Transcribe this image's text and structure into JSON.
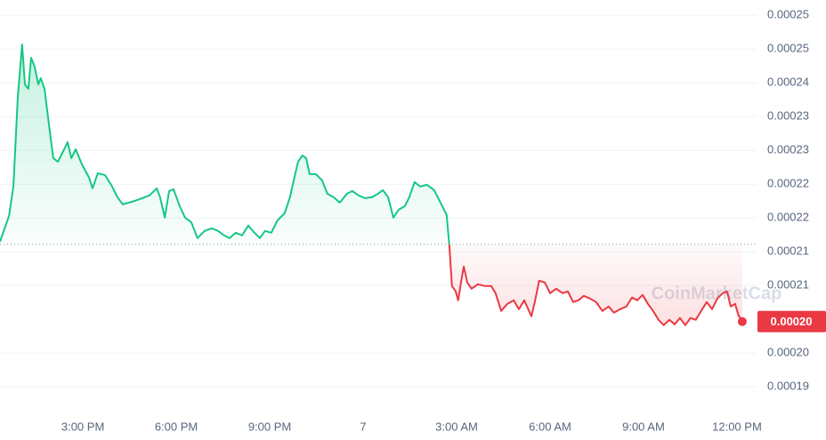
{
  "chart_data": {
    "type": "line",
    "watermark": "CoinMarketCap",
    "up_color": "#16c784",
    "down_color": "#ea3943",
    "baseline": 0.0002137,
    "last_price_label": "0.00020",
    "grid": true,
    "xlim": [
      12.34,
      36.63
    ],
    "xticks": [
      {
        "value": 15,
        "label": "3:00 PM"
      },
      {
        "value": 18,
        "label": "6:00 PM"
      },
      {
        "value": 21,
        "label": "9:00 PM"
      },
      {
        "value": 24,
        "label": "7"
      },
      {
        "value": 27,
        "label": "3:00 AM"
      },
      {
        "value": 30,
        "label": "6:00 AM"
      },
      {
        "value": 33,
        "label": "9:00 AM"
      },
      {
        "value": 36,
        "label": "12:00 PM"
      }
    ],
    "ylim": [
      0.0001869,
      0.0002535
    ],
    "yticks": [
      {
        "value": 0.0001905,
        "label": "0.00019"
      },
      {
        "value": 0.000196,
        "label": "0.00020"
      },
      {
        "value": 0.000207,
        "label": "0.00021"
      },
      {
        "value": 0.0002125,
        "label": "0.00021"
      },
      {
        "value": 0.000218,
        "label": "0.00022"
      },
      {
        "value": 0.0002235,
        "label": "0.00022"
      },
      {
        "value": 0.000229,
        "label": "0.00023"
      },
      {
        "value": 0.0002345,
        "label": "0.00023"
      },
      {
        "value": 0.00024,
        "label": "0.00024"
      },
      {
        "value": 0.0002455,
        "label": "0.00025"
      },
      {
        "value": 0.000251,
        "label": "0.00025"
      }
    ],
    "x": [
      12.34,
      12.48,
      12.63,
      12.77,
      12.91,
      13.05,
      13.14,
      13.25,
      13.34,
      13.45,
      13.57,
      13.65,
      13.77,
      13.91,
      14.05,
      14.2,
      14.4,
      14.51,
      14.63,
      14.77,
      14.97,
      15.2,
      15.31,
      15.48,
      15.71,
      15.91,
      16.11,
      16.28,
      16.48,
      16.68,
      16.91,
      17.14,
      17.37,
      17.48,
      17.63,
      17.77,
      17.91,
      18.11,
      18.28,
      18.48,
      18.68,
      18.91,
      19.14,
      19.34,
      19.54,
      19.71,
      19.91,
      20.11,
      20.31,
      20.51,
      20.68,
      20.85,
      21.05,
      21.25,
      21.48,
      21.65,
      21.77,
      21.91,
      22.05,
      22.17,
      22.28,
      22.48,
      22.68,
      22.85,
      23.05,
      23.25,
      23.48,
      23.65,
      23.85,
      24.05,
      24.28,
      24.48,
      24.63,
      24.8,
      24.97,
      25.14,
      25.34,
      25.48,
      25.65,
      25.83,
      26.05,
      26.28,
      26.48,
      26.68,
      26.77,
      26.85,
      26.97,
      27.05,
      27.14,
      27.23,
      27.34,
      27.48,
      27.68,
      27.91,
      28.11,
      28.25,
      28.43,
      28.63,
      28.83,
      29.0,
      29.17,
      29.4,
      29.51,
      29.65,
      29.83,
      30.0,
      30.2,
      30.4,
      30.57,
      30.74,
      30.91,
      31.08,
      31.28,
      31.48,
      31.68,
      31.88,
      32.05,
      32.25,
      32.45,
      32.63,
      32.8,
      32.97,
      33.14,
      33.31,
      33.48,
      33.65,
      33.83,
      34.0,
      34.17,
      34.34,
      34.51,
      34.68,
      34.85,
      35.03,
      35.2,
      35.37,
      35.54,
      35.68,
      35.8,
      35.94,
      36.05,
      36.17
    ],
    "values": [
      0.00021414,
      0.00021617,
      0.00021834,
      0.00022311,
      0.00023758,
      0.00024626,
      0.00023975,
      0.00023903,
      0.00024409,
      0.00024265,
      0.00023975,
      0.00024077,
      0.00023903,
      0.00023324,
      0.00022774,
      0.00022716,
      0.00022919,
      0.00023035,
      0.00022774,
      0.00022919,
      0.00022673,
      0.00022456,
      0.00022282,
      0.00022528,
      0.00022499,
      0.0002234,
      0.00022138,
      0.00022022,
      0.00022051,
      0.0002208,
      0.00022123,
      0.00022167,
      0.00022282,
      0.00022138,
      0.00021805,
      0.00022239,
      0.00022268,
      0.00021993,
      0.00021805,
      0.00021732,
      0.00021472,
      0.00021588,
      0.00021631,
      0.00021588,
      0.00021515,
      0.00021472,
      0.00021559,
      0.00021515,
      0.00021675,
      0.00021559,
      0.00021472,
      0.00021588,
      0.00021559,
      0.00021761,
      0.00021877,
      0.00022138,
      0.00022413,
      0.00022716,
      0.00022818,
      0.00022774,
      0.00022514,
      0.00022514,
      0.00022413,
      0.00022196,
      0.00022138,
      0.00022051,
      0.00022196,
      0.00022239,
      0.00022167,
      0.00022123,
      0.00022138,
      0.00022196,
      0.00022253,
      0.00022138,
      0.00021805,
      0.00021935,
      0.00021993,
      0.00022138,
      0.00022384,
      0.00022311,
      0.0002234,
      0.00022253,
      0.00022051,
      0.00021848,
      0.00021327,
      0.00020691,
      0.00020604,
      0.00020459,
      0.00020749,
      0.00021009,
      0.00020749,
      0.00020647,
      0.0002072,
      0.00020691,
      0.00020691,
      0.00020575,
      0.00020285,
      0.00020401,
      0.00020459,
      0.00020314,
      0.00020459,
      0.00020199,
      0.0002043,
      0.00020777,
      0.00020749,
      0.00020575,
      0.00020647,
      0.00020575,
      0.00020604,
      0.0002043,
      0.00020459,
      0.00020531,
      0.00020488,
      0.0002043,
      0.00020285,
      0.00020358,
      0.00020257,
      0.00020314,
      0.00020358,
      0.00020503,
      0.00020459,
      0.00020546,
      0.00020401,
      0.00020285,
      0.00020141,
      0.00020054,
      0.00020141,
      0.00020068,
      0.0002017,
      0.00020054,
      0.0002017,
      0.00020141,
      0.00020285,
      0.0002043,
      0.00020314,
      0.00020488,
      0.00020575,
      0.00020604,
      0.00020358,
      0.00020401,
      0.00020213,
      0.00020112
    ]
  }
}
